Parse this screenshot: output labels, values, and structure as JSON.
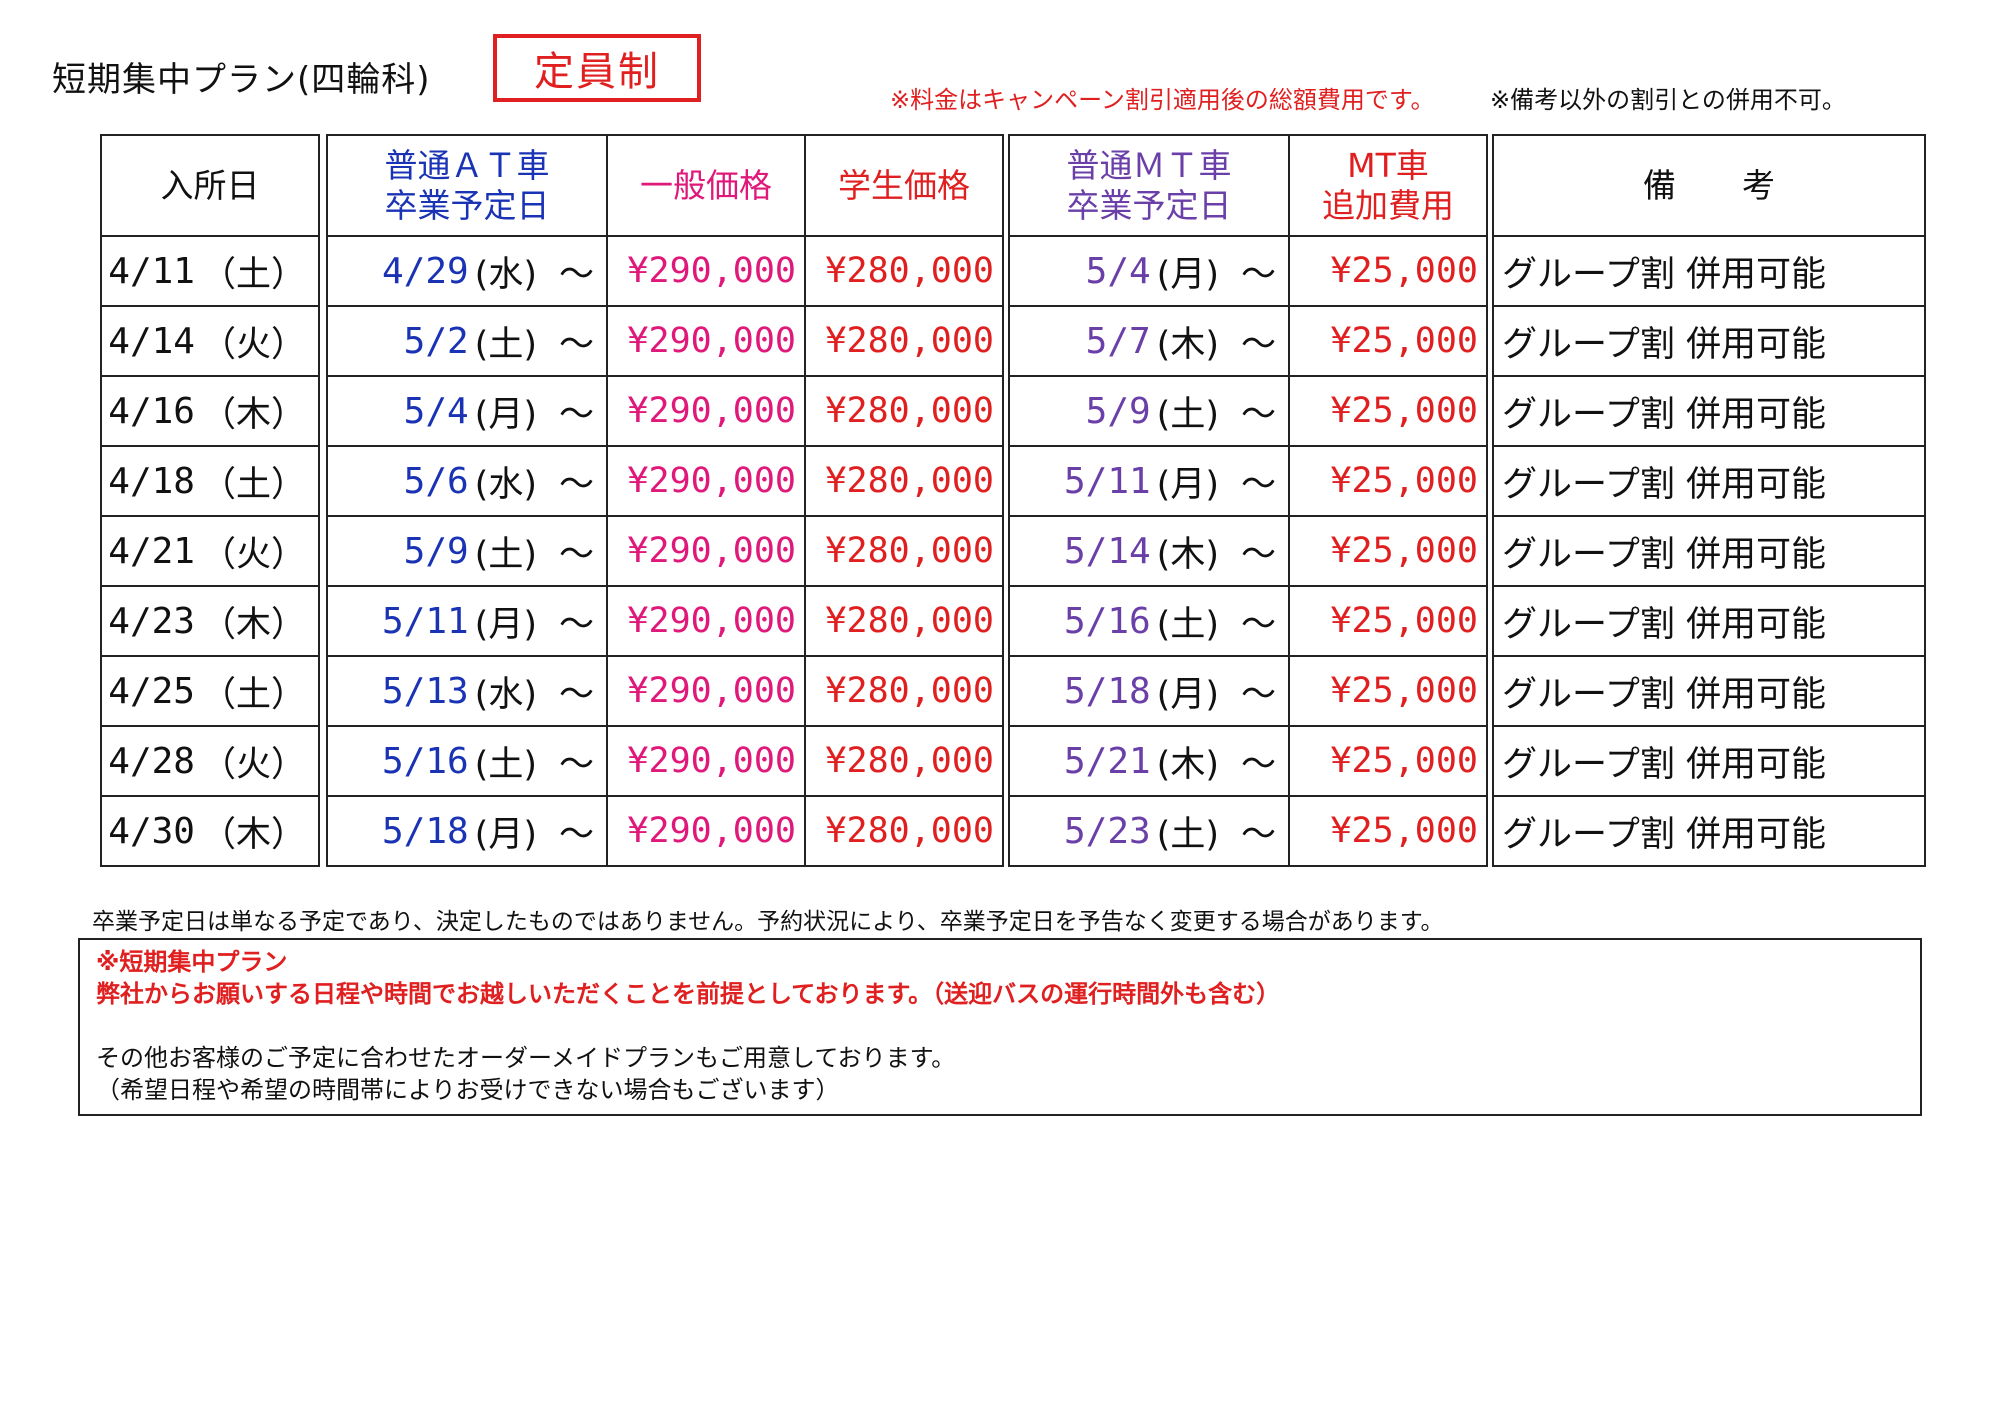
{
  "header": {
    "title": "短期集中プラン(四輪科)",
    "stamp": "定員制",
    "note_price": "※料金はキャンペーン割引適用後の総額費用です。",
    "note_discount": "※備考以外の割引との併用不可。"
  },
  "table": {
    "headers": {
      "entry": "入所日",
      "at_grad": [
        "普通ＡＴ車",
        "卒業予定日"
      ],
      "general_price": "一般価格",
      "student_price": "学生価格",
      "mt_grad": [
        "普通ＭＴ車",
        "卒業予定日"
      ],
      "mt_extra": [
        "MT車",
        "追加費用"
      ],
      "remarks": "備　　考"
    },
    "rows": [
      {
        "entry": "4/11",
        "entry_wd": "（土）",
        "at": "4/29",
        "at_wd": "(水)",
        "tilde": "～",
        "general": "¥290,000",
        "student": "¥280,000",
        "mt": "5/4",
        "mt_wd": "(月)",
        "extra": "¥25,000",
        "remark": "グループ割 併用可能"
      },
      {
        "entry": "4/14",
        "entry_wd": "（火）",
        "at": "5/2",
        "at_wd": "(土)",
        "tilde": "～",
        "general": "¥290,000",
        "student": "¥280,000",
        "mt": "5/7",
        "mt_wd": "(木)",
        "extra": "¥25,000",
        "remark": "グループ割 併用可能"
      },
      {
        "entry": "4/16",
        "entry_wd": "（木）",
        "at": "5/4",
        "at_wd": "(月)",
        "tilde": "～",
        "general": "¥290,000",
        "student": "¥280,000",
        "mt": "5/9",
        "mt_wd": "(土)",
        "extra": "¥25,000",
        "remark": "グループ割 併用可能"
      },
      {
        "entry": "4/18",
        "entry_wd": "（土）",
        "at": "5/6",
        "at_wd": "(水)",
        "tilde": "～",
        "general": "¥290,000",
        "student": "¥280,000",
        "mt": "5/11",
        "mt_wd": "(月)",
        "extra": "¥25,000",
        "remark": "グループ割 併用可能"
      },
      {
        "entry": "4/21",
        "entry_wd": "（火）",
        "at": "5/9",
        "at_wd": "(土)",
        "tilde": "～",
        "general": "¥290,000",
        "student": "¥280,000",
        "mt": "5/14",
        "mt_wd": "(木)",
        "extra": "¥25,000",
        "remark": "グループ割 併用可能"
      },
      {
        "entry": "4/23",
        "entry_wd": "（木）",
        "at": "5/11",
        "at_wd": "(月)",
        "tilde": "～",
        "general": "¥290,000",
        "student": "¥280,000",
        "mt": "5/16",
        "mt_wd": "(土)",
        "extra": "¥25,000",
        "remark": "グループ割 併用可能"
      },
      {
        "entry": "4/25",
        "entry_wd": "（土）",
        "at": "5/13",
        "at_wd": "(水)",
        "tilde": "～",
        "general": "¥290,000",
        "student": "¥280,000",
        "mt": "5/18",
        "mt_wd": "(月)",
        "extra": "¥25,000",
        "remark": "グループ割 併用可能"
      },
      {
        "entry": "4/28",
        "entry_wd": "（火）",
        "at": "5/16",
        "at_wd": "(土)",
        "tilde": "～",
        "general": "¥290,000",
        "student": "¥280,000",
        "mt": "5/21",
        "mt_wd": "(木)",
        "extra": "¥25,000",
        "remark": "グループ割 併用可能"
      },
      {
        "entry": "4/30",
        "entry_wd": "（木）",
        "at": "5/18",
        "at_wd": "(月)",
        "tilde": "～",
        "general": "¥290,000",
        "student": "¥280,000",
        "mt": "5/23",
        "mt_wd": "(土)",
        "extra": "¥25,000",
        "remark": "グループ割 併用可能"
      }
    ]
  },
  "footnote": "卒業予定日は単なる予定であり、決定したものではありません。予約状況により、卒業予定日を予告なく変更する場合があります。",
  "plan_box": {
    "heading": "※短期集中プラン",
    "lead": "弊社からお願いする日程や時間でお越しいただくことを前提としております。（送迎バスの運行時間外も含む）",
    "line1": "その他お客様のご予定に合わせたオーダーメイドプランもご用意しております。",
    "line2": "（希望日程や希望の時間帯によりお受けできない場合もございます）"
  },
  "colors": {
    "at_date": "#1a33b5",
    "general_price": "#e0187a",
    "student_price": "#e02020",
    "mt_date": "#6a3fa8",
    "mt_extra": "#e02020",
    "stamp": "#e02020"
  }
}
